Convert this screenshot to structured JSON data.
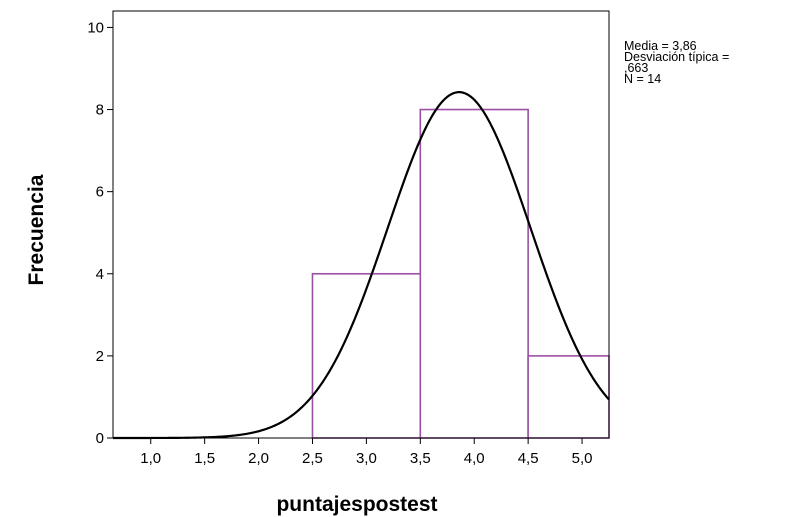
{
  "chart_data": {
    "type": "bar",
    "title": "",
    "xlabel": "puntajespostest",
    "ylabel": "Frecuencia",
    "xlim": [
      0.65,
      5.25
    ],
    "ylim": [
      0,
      10.4
    ],
    "x_ticks": [
      1.0,
      1.5,
      2.0,
      2.5,
      3.0,
      3.5,
      4.0,
      4.5,
      5.0
    ],
    "x_tick_labels": [
      "1,0",
      "1,5",
      "2,0",
      "2,5",
      "3,0",
      "3,5",
      "4,0",
      "4,5",
      "5,0"
    ],
    "y_ticks": [
      0,
      2,
      4,
      6,
      8,
      10
    ],
    "y_tick_labels": [
      "0",
      "2",
      "4",
      "6",
      "8",
      "10"
    ],
    "bins": [
      {
        "start": 2.5,
        "end": 3.5,
        "count": 4
      },
      {
        "start": 3.5,
        "end": 4.5,
        "count": 8
      },
      {
        "start": 4.5,
        "end": 5.5,
        "count": 2
      }
    ],
    "normal_curve": {
      "mean": 3.86,
      "sd": 0.663,
      "n": 14,
      "bin_width": 1.0
    },
    "bar_color": "#9c4fa6",
    "curve_color": "#000000",
    "grid": false,
    "stats_lines": [
      "Media = 3,86",
      "Desviación típica =",
      ",663",
      "N = 14"
    ]
  }
}
